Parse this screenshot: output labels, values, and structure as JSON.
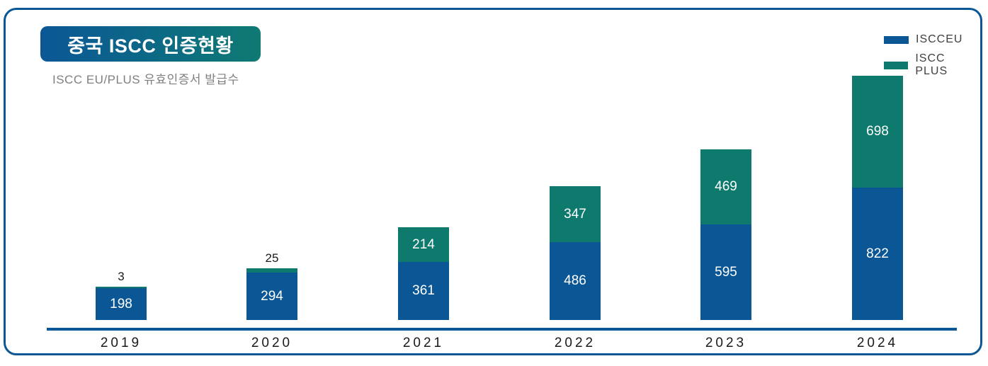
{
  "header": {
    "title": "중국 ISCC 인증현황",
    "subtitle": "ISCC EU/PLUS 유효인증서 발급수"
  },
  "legend": [
    {
      "label": "ISCCEU",
      "color": "#0B5796"
    },
    {
      "label": "ISCC PLUS",
      "color": "#0E7A6E"
    }
  ],
  "colors": {
    "eu_blue": "#0B5796",
    "plus_teal": "#0E7A6E",
    "border_blue": "#0B5796",
    "subtitle_gray": "#7F7F7F",
    "badge_gradient_start": "#0B5796",
    "badge_gradient_end": "#0E7A72"
  },
  "chart_data": {
    "type": "bar",
    "stacked": true,
    "title": "중국 ISCC 인증현황",
    "subtitle": "ISCC EU/PLUS 유효인증서 발급수",
    "categories": [
      "2019",
      "2020",
      "2021",
      "2022",
      "2023",
      "2024"
    ],
    "series": [
      {
        "name": "ISCCEU",
        "color": "#0B5796",
        "values": [
          198,
          294,
          361,
          486,
          595,
          822
        ]
      },
      {
        "name": "ISCC PLUS",
        "color": "#0E7A6E",
        "values": [
          3,
          25,
          214,
          347,
          469,
          698
        ]
      }
    ],
    "totals": [
      201,
      319,
      575,
      833,
      1064,
      1520
    ],
    "plus_label_outside_years": [
      "2019",
      "2020"
    ],
    "legend_position": "top-right",
    "grid": false,
    "y_axis_visible": false,
    "x_axis_line": true
  }
}
